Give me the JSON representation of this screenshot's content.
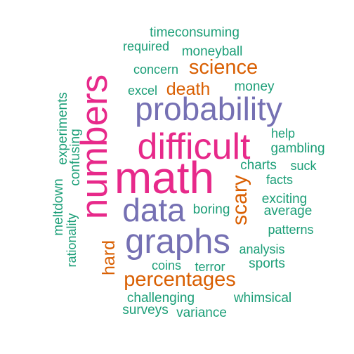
{
  "colors": {
    "green": "#1b9e77",
    "orange": "#d95f02",
    "purple": "#7570b3",
    "magenta": "#e7298a"
  },
  "words": [
    {
      "text": "timeconsuming",
      "color": "green"
    },
    {
      "text": "required",
      "color": "green"
    },
    {
      "text": "moneyball",
      "color": "green"
    },
    {
      "text": "concern",
      "color": "green"
    },
    {
      "text": "science",
      "color": "orange"
    },
    {
      "text": "excel",
      "color": "green"
    },
    {
      "text": "death",
      "color": "orange"
    },
    {
      "text": "money",
      "color": "green"
    },
    {
      "text": "probability",
      "color": "purple"
    },
    {
      "text": "difficult",
      "color": "magenta"
    },
    {
      "text": "help",
      "color": "green"
    },
    {
      "text": "gambling",
      "color": "green"
    },
    {
      "text": "charts",
      "color": "green"
    },
    {
      "text": "suck",
      "color": "green"
    },
    {
      "text": "math",
      "color": "magenta"
    },
    {
      "text": "facts",
      "color": "green"
    },
    {
      "text": "exciting",
      "color": "green"
    },
    {
      "text": "data",
      "color": "purple"
    },
    {
      "text": "boring",
      "color": "green"
    },
    {
      "text": "average",
      "color": "green"
    },
    {
      "text": "patterns",
      "color": "green"
    },
    {
      "text": "graphs",
      "color": "purple"
    },
    {
      "text": "analysis",
      "color": "green"
    },
    {
      "text": "coins",
      "color": "green"
    },
    {
      "text": "terror",
      "color": "green"
    },
    {
      "text": "sports",
      "color": "green"
    },
    {
      "text": "percentages",
      "color": "orange"
    },
    {
      "text": "challenging",
      "color": "green"
    },
    {
      "text": "whimsical",
      "color": "green"
    },
    {
      "text": "surveys",
      "color": "green"
    },
    {
      "text": "variance",
      "color": "green"
    },
    {
      "text": "numbers",
      "color": "magenta"
    },
    {
      "text": "scary",
      "color": "orange"
    },
    {
      "text": "hard",
      "color": "orange"
    },
    {
      "text": "experiments",
      "color": "green"
    },
    {
      "text": "confusing",
      "color": "green"
    },
    {
      "text": "meltdown",
      "color": "green"
    },
    {
      "text": "rationality",
      "color": "green"
    }
  ]
}
